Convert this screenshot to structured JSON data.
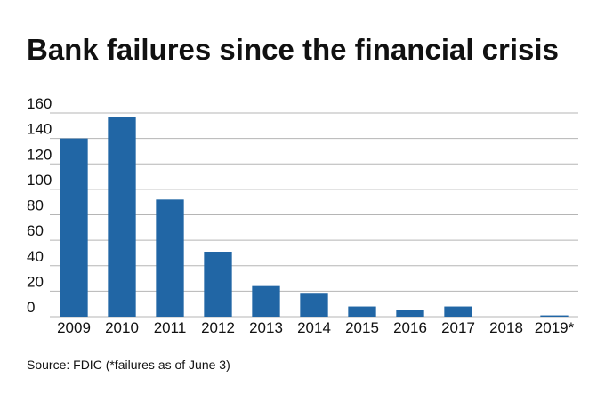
{
  "chart_data": {
    "type": "bar",
    "title": "Bank failures since the financial crisis",
    "categories": [
      "2009",
      "2010",
      "2011",
      "2012",
      "2013",
      "2014",
      "2015",
      "2016",
      "2017",
      "2018",
      "2019*"
    ],
    "values": [
      140,
      157,
      92,
      51,
      24,
      18,
      8,
      5,
      8,
      0,
      1
    ],
    "color": "#2166a5",
    "ylim": [
      0,
      160
    ],
    "yticks": [
      0,
      20,
      40,
      60,
      80,
      100,
      120,
      140,
      160
    ],
    "grid": true,
    "source": "Source: FDIC (*failures as of June 3)"
  }
}
